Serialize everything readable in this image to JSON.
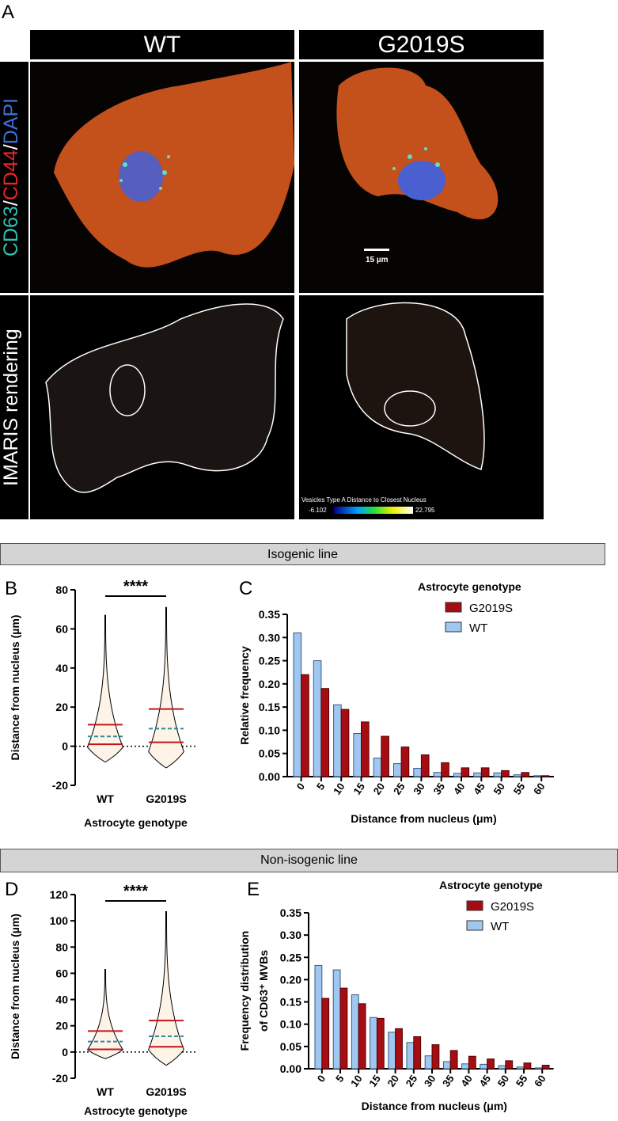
{
  "panelA": {
    "label": "A",
    "col_headers": [
      "WT",
      "G2019S"
    ],
    "row_label_top": [
      "CD63",
      "/",
      "CD44",
      "/",
      "DAPI"
    ],
    "row_label_bottom": "IMARIS rendering",
    "scale_bar": "15 µm",
    "colorbar_title": "Vesicles Type A Distance to Closest Nucleus",
    "colorbar_min": "-6.102",
    "colorbar_max": "22.795"
  },
  "bands": {
    "isogenic": "Isogenic line",
    "nonisogenic": "Non-isogenic line"
  },
  "colors": {
    "g2019s": "#a50d12",
    "wt": "#9fc7f0",
    "violin_fill": "#fdf3e6",
    "quartile": "#c0141b",
    "median": "#2a8b9c"
  },
  "chart_data": [
    {
      "panel": "B",
      "type": "violin",
      "ylabel": "Distance from nucleus (µm)",
      "xlabel": "Astrocyte genotype",
      "ylim": [
        -20,
        80
      ],
      "yticks": [
        -20,
        0,
        20,
        40,
        60,
        80
      ],
      "categories": [
        "WT",
        "G2019S"
      ],
      "significance": "****",
      "series": [
        {
          "name": "WT",
          "min": -8,
          "q1": 1,
          "median": 5,
          "q3": 11,
          "max": 67
        },
        {
          "name": "G2019S",
          "min": -11,
          "q1": 2,
          "median": 9,
          "q3": 19,
          "max": 71
        }
      ]
    },
    {
      "panel": "C",
      "type": "bar",
      "ylabel": "Relative frequency",
      "xlabel": "Distance from nucleus (µm)",
      "legend_title": "Astrocyte genotype",
      "legend": "top-right",
      "ylim": [
        0,
        0.35
      ],
      "yticks": [
        "0.00",
        "0.05",
        "0.10",
        "0.15",
        "0.20",
        "0.25",
        "0.30",
        "0.35"
      ],
      "categories": [
        "0",
        "5",
        "10",
        "15",
        "20",
        "25",
        "30",
        "35",
        "40",
        "45",
        "50",
        "55",
        "60"
      ],
      "series": [
        {
          "name": "WT",
          "values": [
            0.31,
            0.25,
            0.155,
            0.093,
            0.04,
            0.028,
            0.018,
            0.009,
            0.007,
            0.008,
            0.008,
            0.004,
            0.002
          ]
        },
        {
          "name": "G2019S",
          "values": [
            0.22,
            0.19,
            0.145,
            0.118,
            0.087,
            0.064,
            0.047,
            0.03,
            0.019,
            0.019,
            0.013,
            0.009,
            0.002
          ]
        }
      ]
    },
    {
      "panel": "D",
      "type": "violin",
      "ylabel": "Distance from nucleus (µm)",
      "xlabel": "Astrocyte genotype",
      "ylim": [
        -20,
        120
      ],
      "yticks": [
        -20,
        0,
        20,
        40,
        60,
        80,
        100,
        120
      ],
      "categories": [
        "WT",
        "G2019S"
      ],
      "significance": "****",
      "series": [
        {
          "name": "WT",
          "min": -5,
          "q1": 2,
          "median": 8,
          "q3": 16,
          "max": 63
        },
        {
          "name": "G2019S",
          "min": -10,
          "q1": 4,
          "median": 12,
          "q3": 24,
          "max": 107
        }
      ]
    },
    {
      "panel": "E",
      "type": "bar",
      "ylabel": "Frequency distribution of CD63⁺ MVBs",
      "xlabel": "Distance from nucleus (µm)",
      "legend_title": "Astrocyte genotype",
      "legend": "top-right",
      "ylim": [
        0,
        0.35
      ],
      "yticks": [
        "0.00",
        "0.05",
        "0.10",
        "0.15",
        "0.20",
        "0.25",
        "0.30",
        "0.35"
      ],
      "categories": [
        "0",
        "5",
        "10",
        "15",
        "20",
        "25",
        "30",
        "35",
        "40",
        "45",
        "50",
        "55",
        "60"
      ],
      "series": [
        {
          "name": "WT",
          "values": [
            0.232,
            0.222,
            0.166,
            0.115,
            0.082,
            0.059,
            0.029,
            0.016,
            0.011,
            0.01,
            0.007,
            0.004,
            0.002
          ]
        },
        {
          "name": "G2019S",
          "values": [
            0.158,
            0.181,
            0.146,
            0.113,
            0.09,
            0.072,
            0.054,
            0.041,
            0.028,
            0.022,
            0.018,
            0.013,
            0.008
          ]
        }
      ]
    }
  ]
}
